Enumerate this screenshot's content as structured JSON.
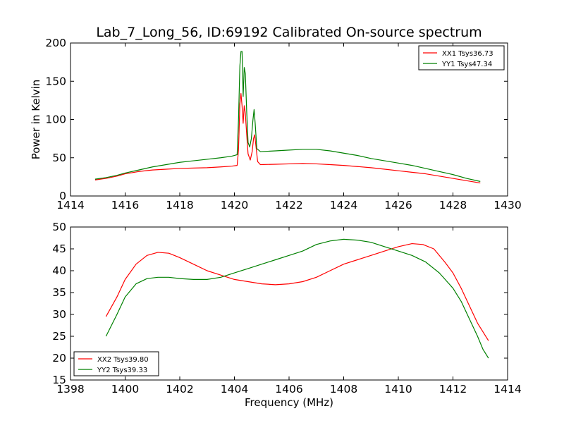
{
  "figure": {
    "title": "Lab_7_Long_56, ID:69192 Calibrated On-source spectrum"
  },
  "chart_data": [
    {
      "type": "line",
      "title": "Lab_7_Long_56, ID:69192 Calibrated On-source spectrum",
      "xlabel": "",
      "ylabel": "Power in Kelvin",
      "xlim": [
        1414,
        1430
      ],
      "ylim": [
        0,
        200
      ],
      "xticks": [
        1414,
        1416,
        1418,
        1420,
        1422,
        1424,
        1426,
        1428,
        1430
      ],
      "yticks": [
        0,
        50,
        100,
        150,
        200
      ],
      "grid": false,
      "legend_position": "upper right",
      "series": [
        {
          "name": "XX1 Tsys36.73",
          "color": "#ff0000",
          "points": [
            [
              1414.9,
              21
            ],
            [
              1415.3,
              23
            ],
            [
              1415.7,
              26
            ],
            [
              1416.0,
              29
            ],
            [
              1416.5,
              32
            ],
            [
              1417.0,
              34
            ],
            [
              1417.5,
              35
            ],
            [
              1418.0,
              36
            ],
            [
              1418.5,
              36.5
            ],
            [
              1419.0,
              37
            ],
            [
              1419.5,
              38
            ],
            [
              1419.9,
              39
            ],
            [
              1420.1,
              40
            ],
            [
              1420.15,
              60
            ],
            [
              1420.2,
              120
            ],
            [
              1420.24,
              134
            ],
            [
              1420.28,
              118
            ],
            [
              1420.32,
              95
            ],
            [
              1420.36,
              118
            ],
            [
              1420.4,
              108
            ],
            [
              1420.45,
              80
            ],
            [
              1420.5,
              55
            ],
            [
              1420.58,
              47
            ],
            [
              1420.65,
              58
            ],
            [
              1420.7,
              75
            ],
            [
              1420.74,
              80
            ],
            [
              1420.78,
              68
            ],
            [
              1420.85,
              45
            ],
            [
              1420.95,
              41
            ],
            [
              1421.5,
              41.5
            ],
            [
              1422.0,
              42
            ],
            [
              1422.5,
              42.5
            ],
            [
              1423.0,
              42
            ],
            [
              1423.5,
              41
            ],
            [
              1424.0,
              40
            ],
            [
              1424.5,
              38.5
            ],
            [
              1425.0,
              37
            ],
            [
              1425.5,
              35
            ],
            [
              1426.0,
              33
            ],
            [
              1426.5,
              31
            ],
            [
              1427.0,
              29
            ],
            [
              1427.5,
              26
            ],
            [
              1428.0,
              23
            ],
            [
              1428.5,
              20
            ],
            [
              1429.0,
              17
            ]
          ]
        },
        {
          "name": "YY1 Tsys47.34",
          "color": "#008000",
          "points": [
            [
              1414.9,
              22
            ],
            [
              1415.3,
              24
            ],
            [
              1415.7,
              27
            ],
            [
              1416.0,
              30
            ],
            [
              1416.5,
              34
            ],
            [
              1417.0,
              38
            ],
            [
              1417.5,
              41
            ],
            [
              1418.0,
              44
            ],
            [
              1418.5,
              46
            ],
            [
              1419.0,
              48
            ],
            [
              1419.5,
              50
            ],
            [
              1419.9,
              52
            ],
            [
              1420.1,
              54
            ],
            [
              1420.15,
              100
            ],
            [
              1420.2,
              170
            ],
            [
              1420.24,
              189
            ],
            [
              1420.28,
              189
            ],
            [
              1420.32,
              130
            ],
            [
              1420.36,
              168
            ],
            [
              1420.4,
              160
            ],
            [
              1420.45,
              110
            ],
            [
              1420.5,
              70
            ],
            [
              1420.56,
              64
            ],
            [
              1420.62,
              75
            ],
            [
              1420.68,
              100
            ],
            [
              1420.72,
              113
            ],
            [
              1420.76,
              95
            ],
            [
              1420.82,
              62
            ],
            [
              1420.95,
              58
            ],
            [
              1421.5,
              59
            ],
            [
              1422.0,
              60
            ],
            [
              1422.5,
              61
            ],
            [
              1423.0,
              61
            ],
            [
              1423.5,
              59
            ],
            [
              1424.0,
              56
            ],
            [
              1424.5,
              53
            ],
            [
              1425.0,
              49
            ],
            [
              1425.5,
              46
            ],
            [
              1426.0,
              43
            ],
            [
              1426.5,
              40
            ],
            [
              1427.0,
              36
            ],
            [
              1427.5,
              32
            ],
            [
              1428.0,
              28
            ],
            [
              1428.5,
              23
            ],
            [
              1429.0,
              19
            ]
          ]
        }
      ]
    },
    {
      "type": "line",
      "title": "",
      "xlabel": "Frequency (MHz)",
      "ylabel": "",
      "xlim": [
        1398,
        1414
      ],
      "ylim": [
        15,
        50
      ],
      "xticks": [
        1398,
        1400,
        1402,
        1404,
        1406,
        1408,
        1410,
        1412,
        1414
      ],
      "yticks": [
        15,
        20,
        25,
        30,
        35,
        40,
        45,
        50
      ],
      "grid": false,
      "legend_position": "lower left",
      "series": [
        {
          "name": "XX2 Tsys39.80",
          "color": "#ff0000",
          "points": [
            [
              1399.3,
              29.5
            ],
            [
              1399.7,
              34
            ],
            [
              1400.0,
              38
            ],
            [
              1400.4,
              41.5
            ],
            [
              1400.8,
              43.5
            ],
            [
              1401.2,
              44.2
            ],
            [
              1401.6,
              44
            ],
            [
              1402.0,
              43
            ],
            [
              1402.5,
              41.5
            ],
            [
              1403.0,
              40
            ],
            [
              1403.5,
              39
            ],
            [
              1404.0,
              38
            ],
            [
              1404.5,
              37.5
            ],
            [
              1405.0,
              37
            ],
            [
              1405.5,
              36.8
            ],
            [
              1406.0,
              37
            ],
            [
              1406.5,
              37.5
            ],
            [
              1407.0,
              38.5
            ],
            [
              1407.5,
              40
            ],
            [
              1408.0,
              41.5
            ],
            [
              1408.5,
              42.5
            ],
            [
              1409.0,
              43.5
            ],
            [
              1409.5,
              44.5
            ],
            [
              1410.0,
              45.5
            ],
            [
              1410.5,
              46.2
            ],
            [
              1410.9,
              46
            ],
            [
              1411.3,
              45
            ],
            [
              1411.7,
              42
            ],
            [
              1412.0,
              39.5
            ],
            [
              1412.3,
              36
            ],
            [
              1412.6,
              32
            ],
            [
              1412.9,
              28
            ],
            [
              1413.3,
              24
            ]
          ]
        },
        {
          "name": "YY2 Tsys39.33",
          "color": "#008000",
          "points": [
            [
              1399.3,
              25
            ],
            [
              1399.7,
              30
            ],
            [
              1400.0,
              34
            ],
            [
              1400.4,
              37
            ],
            [
              1400.8,
              38.2
            ],
            [
              1401.2,
              38.5
            ],
            [
              1401.6,
              38.5
            ],
            [
              1402.0,
              38.2
            ],
            [
              1402.5,
              38
            ],
            [
              1403.0,
              38
            ],
            [
              1403.5,
              38.5
            ],
            [
              1404.0,
              39.5
            ],
            [
              1404.5,
              40.5
            ],
            [
              1405.0,
              41.5
            ],
            [
              1405.5,
              42.5
            ],
            [
              1406.0,
              43.5
            ],
            [
              1406.5,
              44.5
            ],
            [
              1407.0,
              46
            ],
            [
              1407.5,
              46.8
            ],
            [
              1408.0,
              47.2
            ],
            [
              1408.5,
              47
            ],
            [
              1409.0,
              46.5
            ],
            [
              1409.5,
              45.5
            ],
            [
              1410.0,
              44.5
            ],
            [
              1410.5,
              43.5
            ],
            [
              1411.0,
              42
            ],
            [
              1411.5,
              39.5
            ],
            [
              1412.0,
              36
            ],
            [
              1412.3,
              33
            ],
            [
              1412.6,
              29
            ],
            [
              1412.9,
              25
            ],
            [
              1413.1,
              22
            ],
            [
              1413.3,
              20
            ]
          ]
        }
      ]
    }
  ]
}
